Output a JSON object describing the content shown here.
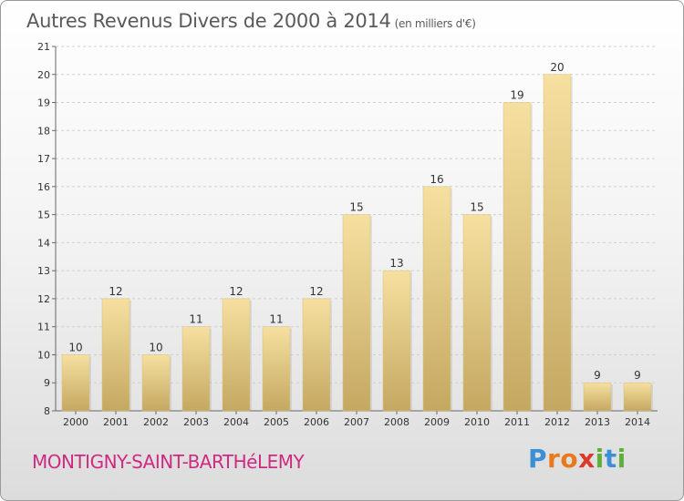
{
  "chart_title": "Autres Revenus Divers de 2000 à 2014",
  "chart_unit": "(en milliers d'€)",
  "commune_name": "MONTIGNY-SAINT-BARTHéLEMY",
  "brand": {
    "letters": [
      "P",
      "r",
      "o",
      "x",
      "i",
      "t",
      "i"
    ],
    "colors": [
      "#3a8fd6",
      "#e87a1c",
      "#e87a1c",
      "#d93a2a",
      "#5fb03a",
      "#3a8fd6",
      "#5fb03a"
    ]
  },
  "colors": {
    "bar_top": "#f6e0a0",
    "bar_bottom": "#c4a862",
    "title": "#5a5a5a",
    "commune": "#cf2a82"
  },
  "chart_data": {
    "type": "bar",
    "title": "Autres Revenus Divers de 2000 à 2014",
    "subtitle": "(en milliers d'€)",
    "categories": [
      "2000",
      "2001",
      "2002",
      "2003",
      "2004",
      "2005",
      "2006",
      "2007",
      "2008",
      "2009",
      "2010",
      "2011",
      "2012",
      "2013",
      "2014"
    ],
    "values": [
      10,
      12,
      10,
      11,
      12,
      11,
      12,
      15,
      13,
      16,
      15,
      19,
      20,
      9,
      9
    ],
    "ylim": [
      8,
      21
    ],
    "yticks": [
      8,
      9,
      10,
      11,
      12,
      13,
      14,
      15,
      16,
      17,
      18,
      19,
      20,
      21
    ],
    "grid": true,
    "data_labels": true
  }
}
